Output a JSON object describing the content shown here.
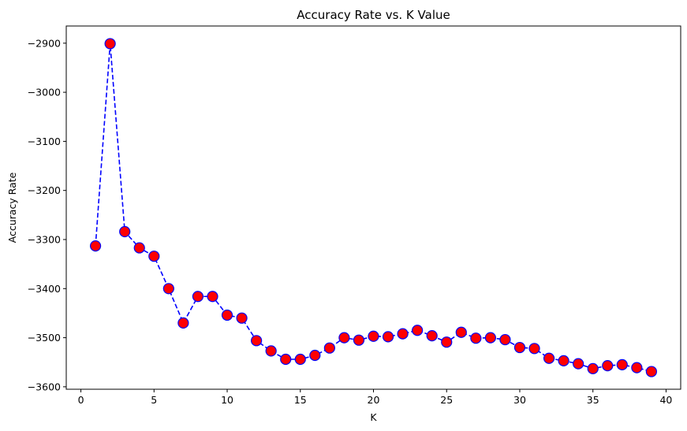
{
  "chart_data": {
    "type": "line",
    "title": "Accuracy Rate vs. K Value",
    "xlabel": "K",
    "ylabel": "Accuracy Rate",
    "xlim": [
      -1,
      41
    ],
    "ylim": [
      -3605,
      -2865
    ],
    "xticks": [
      0,
      5,
      10,
      15,
      20,
      25,
      30,
      35,
      40
    ],
    "yticks": [
      -2900,
      -3000,
      -3100,
      -3200,
      -3300,
      -3400,
      -3500,
      -3600
    ],
    "grid": false,
    "line_color": "#0000ff",
    "line_style": "dashed",
    "marker_face_color": "#ff0000",
    "marker_edge_color": "#0000ff",
    "series": [
      {
        "x": [
          1,
          2,
          3,
          4,
          5,
          6,
          7,
          8,
          9,
          10,
          11,
          12,
          13,
          14,
          15,
          16,
          17,
          18,
          19,
          20,
          21,
          22,
          23,
          24,
          25,
          26,
          27,
          28,
          29,
          30,
          31,
          32,
          33,
          34,
          35,
          36,
          37,
          38,
          39
        ],
        "values": [
          -3313,
          -2901,
          -3284,
          -3317,
          -3334,
          -3400,
          -3470,
          -3416,
          -3416,
          -3454,
          -3460,
          -3506,
          -3527,
          -3544,
          -3544,
          -3536,
          -3521,
          -3500,
          -3505,
          -3497,
          -3498,
          -3492,
          -3485,
          -3496,
          -3509,
          -3489,
          -3501,
          -3500,
          -3504,
          -3520,
          -3522,
          -3542,
          -3547,
          -3553,
          -3563,
          -3557,
          -3555,
          -3561,
          -3569
        ]
      }
    ]
  }
}
